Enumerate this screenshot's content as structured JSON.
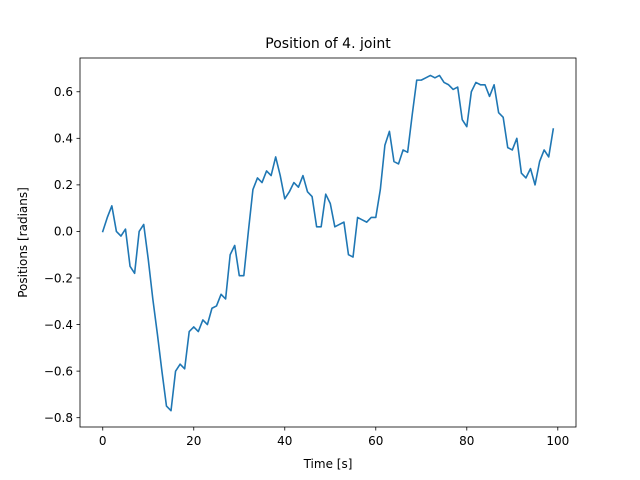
{
  "chart_data": {
    "type": "line",
    "title": "Position of 4. joint",
    "xlabel": "Time [s]",
    "ylabel": "Positions [radians]",
    "xlim": [
      -5,
      104
    ],
    "ylim": [
      -0.84,
      0.745
    ],
    "xticks": [
      0,
      20,
      40,
      60,
      80,
      100
    ],
    "yticks": [
      -0.8,
      -0.6,
      -0.4,
      -0.2,
      0.0,
      0.2,
      0.4,
      0.6
    ],
    "ytick_labels": [
      "−0.8",
      "−0.6",
      "−0.4",
      "−0.2",
      "0.0",
      "0.2",
      "0.4",
      "0.6"
    ],
    "grid": false,
    "series": [
      {
        "color": "#1f77b4",
        "x": [
          0,
          1,
          2,
          3,
          4,
          5,
          6,
          7,
          8,
          9,
          10,
          11,
          12,
          13,
          14,
          15,
          16,
          17,
          18,
          19,
          20,
          21,
          22,
          23,
          24,
          25,
          26,
          27,
          28,
          29,
          30,
          31,
          32,
          33,
          34,
          35,
          36,
          37,
          38,
          39,
          40,
          41,
          42,
          43,
          44,
          45,
          46,
          47,
          48,
          49,
          50,
          51,
          52,
          53,
          54,
          55,
          56,
          57,
          58,
          59,
          60,
          61,
          62,
          63,
          64,
          65,
          66,
          67,
          68,
          69,
          70,
          71,
          72,
          73,
          74,
          75,
          76,
          77,
          78,
          79,
          80,
          81,
          82,
          83,
          84,
          85,
          86,
          87,
          88,
          89,
          90,
          91,
          92,
          93,
          94,
          95,
          96,
          97,
          98,
          99
        ],
        "y": [
          0.0,
          0.06,
          0.11,
          0.0,
          -0.02,
          0.01,
          -0.15,
          -0.18,
          0.0,
          0.03,
          -0.12,
          -0.29,
          -0.44,
          -0.6,
          -0.75,
          -0.77,
          -0.6,
          -0.57,
          -0.59,
          -0.43,
          -0.41,
          -0.43,
          -0.38,
          -0.4,
          -0.33,
          -0.32,
          -0.27,
          -0.29,
          -0.1,
          -0.06,
          -0.19,
          -0.19,
          0.0,
          0.18,
          0.23,
          0.21,
          0.26,
          0.24,
          0.32,
          0.24,
          0.14,
          0.17,
          0.21,
          0.19,
          0.24,
          0.17,
          0.15,
          0.02,
          0.02,
          0.16,
          0.12,
          0.02,
          0.03,
          0.04,
          -0.1,
          -0.11,
          0.06,
          0.05,
          0.04,
          0.06,
          0.06,
          0.18,
          0.37,
          0.43,
          0.3,
          0.29,
          0.35,
          0.34,
          0.5,
          0.65,
          0.65,
          0.66,
          0.67,
          0.66,
          0.67,
          0.64,
          0.63,
          0.61,
          0.62,
          0.48,
          0.45,
          0.6,
          0.64,
          0.63,
          0.63,
          0.58,
          0.63,
          0.51,
          0.49,
          0.36,
          0.35,
          0.4,
          0.25,
          0.23,
          0.27,
          0.2,
          0.3,
          0.35,
          0.32,
          0.44
        ]
      }
    ]
  }
}
